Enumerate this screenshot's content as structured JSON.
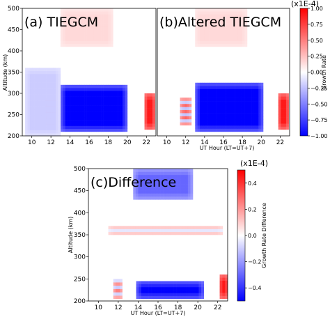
{
  "colors": {
    "negative": "#0000ff",
    "positive": "#ff0000",
    "neutral": "#ffffff",
    "axis": "#000000"
  },
  "chart_data": [
    {
      "id": "a",
      "type": "heatmap",
      "title": "(a) TIEGCM",
      "xlabel": "",
      "ylabel": "Altitude (km)",
      "xlim": [
        9,
        23
      ],
      "ylim": [
        200,
        500
      ],
      "xticks": [
        10,
        12,
        14,
        16,
        18,
        20,
        22
      ],
      "yticks": [
        200,
        250,
        300,
        350,
        400,
        450,
        500
      ],
      "colorbar": {
        "label": "",
        "range": [
          -1.0,
          1.0
        ],
        "ticks": [],
        "exponent": ""
      },
      "features": [
        {
          "desc": "strong negative block",
          "x": [
            13.0,
            20.0
          ],
          "y": [
            210,
            320
          ],
          "value": -1.0
        },
        {
          "desc": "positive column near 22 UT",
          "x": [
            21.8,
            22.9
          ],
          "y": [
            215,
            300
          ],
          "value": 0.9
        },
        {
          "desc": "striped positive/negative band near 12 UT",
          "x": [
            11.4,
            12.6
          ],
          "y": [
            225,
            290
          ],
          "value": 0.6
        },
        {
          "desc": "weak positive patch aloft",
          "x": [
            13.0,
            18.5
          ],
          "y": [
            410,
            500
          ],
          "value": 0.15
        },
        {
          "desc": "weak negative haze",
          "x": [
            9.3,
            13.0
          ],
          "y": [
            200,
            360
          ],
          "value": -0.2
        }
      ]
    },
    {
      "id": "b",
      "type": "heatmap",
      "title": "(b)Altered TIEGCM",
      "xlabel": "UT Hour (LT=UT+7)",
      "ylabel": "",
      "xlim": [
        9,
        23
      ],
      "ylim": [
        200,
        500
      ],
      "xticks": [
        10,
        12,
        14,
        16,
        18,
        20,
        22
      ],
      "colorbar": {
        "label": "Growth Rate",
        "range": [
          -1.0,
          1.0
        ],
        "ticks": [
          "1.00",
          "0.75",
          "0.50",
          "0.25",
          "0.00",
          "−0.25",
          "−0.50",
          "−0.75",
          "−1.00"
        ],
        "exponent": "(x1E-4)"
      },
      "features": [
        {
          "desc": "strong negative block",
          "x": [
            13.0,
            20.2
          ],
          "y": [
            210,
            325
          ],
          "value": -1.0
        },
        {
          "desc": "positive column near 22 UT",
          "x": [
            21.8,
            22.9
          ],
          "y": [
            215,
            300
          ],
          "value": 0.9
        },
        {
          "desc": "striped positive/negative band near 12 UT",
          "x": [
            11.4,
            12.6
          ],
          "y": [
            225,
            290
          ],
          "value": 0.6
        },
        {
          "desc": "weak positive patch aloft",
          "x": [
            13.0,
            18.5
          ],
          "y": [
            410,
            500
          ],
          "value": 0.15
        }
      ]
    },
    {
      "id": "c",
      "type": "heatmap",
      "title": "(c)Difference",
      "xlabel": "UT Hour (LT=UT+7)",
      "ylabel": "Altitude (km)",
      "xlim": [
        9,
        23
      ],
      "ylim": [
        200,
        500
      ],
      "xticks": [
        10,
        12,
        14,
        16,
        18,
        20,
        22
      ],
      "yticks": [
        200,
        250,
        300,
        350,
        400,
        450,
        500
      ],
      "colorbar": {
        "label": "Growth Rate Difference",
        "range": [
          -0.5,
          0.5
        ],
        "ticks": [
          "0.4",
          "0.2",
          "0.0",
          "−0.2",
          "−0.4"
        ],
        "exponent": "(x1E-4)"
      },
      "features": [
        {
          "desc": "strong negative block at low altitude",
          "x": [
            13.8,
            20.6
          ],
          "y": [
            205,
            245
          ],
          "value": -0.5
        },
        {
          "desc": "negative band aloft",
          "x": [
            13.5,
            19.5
          ],
          "y": [
            430,
            500
          ],
          "value": -0.3
        },
        {
          "desc": "faint positive striped layer",
          "x": [
            11.0,
            22.5
          ],
          "y": [
            350,
            370
          ],
          "value": 0.12
        },
        {
          "desc": "positive column near 22.5 UT",
          "x": [
            22.2,
            23.0
          ],
          "y": [
            205,
            260
          ],
          "value": 0.45
        },
        {
          "desc": "striped band near 12 UT",
          "x": [
            11.5,
            12.4
          ],
          "y": [
            205,
            250
          ],
          "value": 0.25
        }
      ]
    }
  ]
}
